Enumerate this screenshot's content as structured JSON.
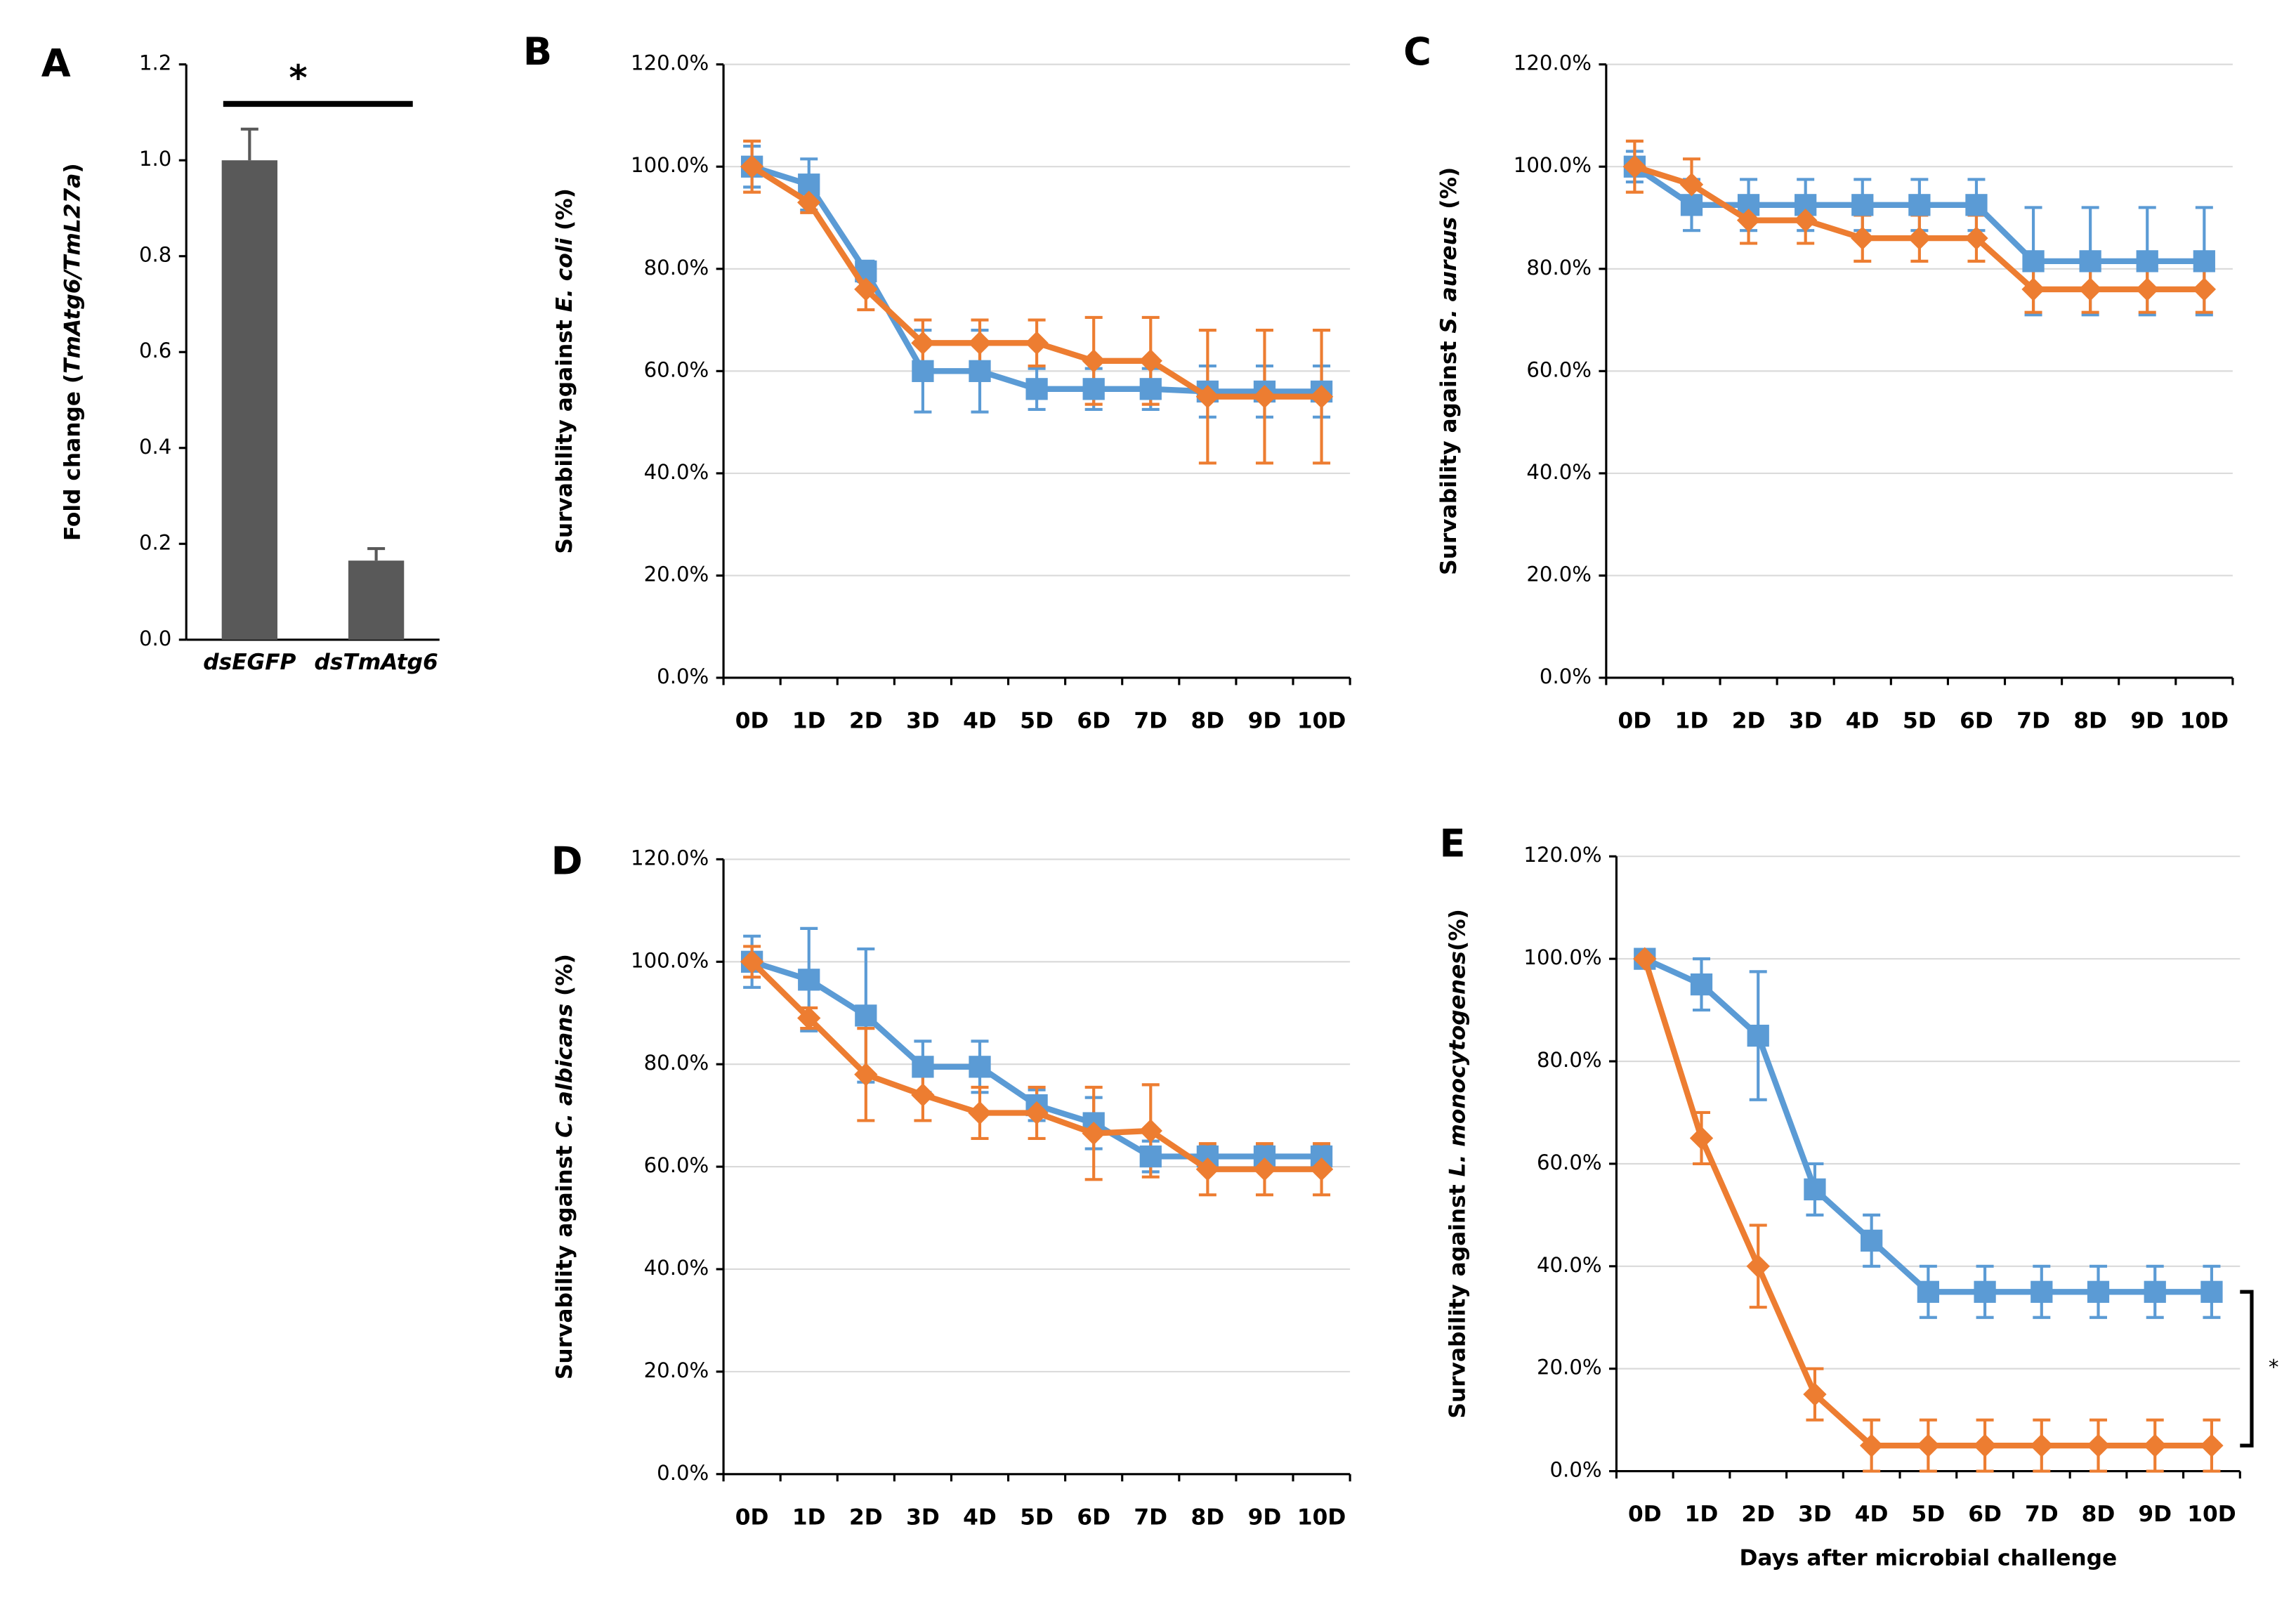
{
  "chart_data": [
    {
      "type": "bar",
      "label": "A",
      "ylabel": [
        {
          "text": "Fold change ("
        },
        {
          "text": "TmAtg6/TmL27a",
          "italic": true
        },
        {
          "text": ")"
        }
      ],
      "categories": [
        "dsEGFP",
        "dsTmAtg6"
      ],
      "values": [
        1.0,
        0.165
      ],
      "errors": [
        0.065,
        0.025
      ],
      "color": "#595959",
      "ylim": [
        0,
        1.2
      ],
      "yticks": [
        {
          "value": 0,
          "label": "0.0"
        },
        0.2,
        0.4,
        0.6,
        0.8,
        {
          "value": 1,
          "label": "1.0"
        },
        1.2
      ],
      "grid": false,
      "annotation": "*"
    },
    {
      "type": "line",
      "label": "B",
      "ylabel": [
        {
          "text": "Survability against "
        },
        {
          "text": "E. coli",
          "italic": true
        },
        {
          "text": " (%)"
        }
      ],
      "categories": [
        "0D",
        "1D",
        "2D",
        "3D",
        "4D",
        "5D",
        "6D",
        "7D",
        "8D",
        "9D",
        "10D"
      ],
      "ylim": [
        0,
        120
      ],
      "yticks": [
        {
          "value": 0,
          "label": "0.0%"
        },
        {
          "value": 20,
          "label": "20.0%"
        },
        {
          "value": 40,
          "label": "40.0%"
        },
        {
          "value": 60,
          "label": "60.0%"
        },
        {
          "value": 80,
          "label": "80.0%"
        },
        {
          "value": 100,
          "label": "100.0%"
        },
        {
          "value": 120,
          "label": "120.0%"
        }
      ],
      "grid": true,
      "series": [
        {
          "color": "#5b9bd5",
          "marker": "square",
          "values": [
            100,
            96.5,
            79.5,
            60,
            60,
            56.5,
            56.5,
            56.5,
            56,
            56,
            56
          ],
          "errors": [
            4,
            5,
            2,
            8,
            8,
            4,
            4,
            4,
            5,
            5,
            5
          ]
        },
        {
          "color": "#ed7d31",
          "marker": "diamond",
          "values": [
            100,
            93,
            76,
            65.5,
            65.5,
            65.5,
            62,
            62,
            55,
            55,
            55
          ],
          "errors": [
            5,
            2,
            4,
            4.5,
            4.5,
            4.5,
            8.5,
            8.5,
            13,
            13,
            13
          ]
        }
      ]
    },
    {
      "type": "line",
      "label": "C",
      "ylabel": [
        {
          "text": "Survability against "
        },
        {
          "text": "S. aureus",
          "italic": true
        },
        {
          "text": " (%)"
        }
      ],
      "categories": [
        "0D",
        "1D",
        "2D",
        "3D",
        "4D",
        "5D",
        "6D",
        "7D",
        "8D",
        "9D",
        "10D"
      ],
      "ylim": [
        0,
        120
      ],
      "yticks": [
        {
          "value": 0,
          "label": "0.0%"
        },
        {
          "value": 20,
          "label": "20.0%"
        },
        {
          "value": 40,
          "label": "40.0%"
        },
        {
          "value": 60,
          "label": "60.0%"
        },
        {
          "value": 80,
          "label": "80.0%"
        },
        {
          "value": 100,
          "label": "100.0%"
        },
        {
          "value": 120,
          "label": "120.0%"
        }
      ],
      "grid": true,
      "series": [
        {
          "color": "#5b9bd5",
          "marker": "square",
          "values": [
            100,
            92.5,
            92.5,
            92.5,
            92.5,
            92.5,
            92.5,
            81.5,
            81.5,
            81.5,
            81.5
          ],
          "errors": [
            3,
            5,
            5,
            5,
            5,
            5,
            5,
            10.5,
            10.5,
            10.5,
            10.5
          ]
        },
        {
          "color": "#ed7d31",
          "marker": "diamond",
          "values": [
            100,
            96.5,
            89.5,
            89.5,
            86,
            86,
            86,
            76,
            76,
            76,
            76
          ],
          "errors": [
            5,
            5,
            4.5,
            4.5,
            4.5,
            4.5,
            4.5,
            4.5,
            4.5,
            4.5,
            4.5
          ]
        }
      ]
    },
    {
      "type": "line",
      "label": "D",
      "ylabel": [
        {
          "text": "Survability against "
        },
        {
          "text": "C. albicans",
          "italic": true
        },
        {
          "text": " (%)"
        }
      ],
      "categories": [
        "0D",
        "1D",
        "2D",
        "3D",
        "4D",
        "5D",
        "6D",
        "7D",
        "8D",
        "9D",
        "10D"
      ],
      "ylim": [
        0,
        120
      ],
      "yticks": [
        {
          "value": 0,
          "label": "0.0%"
        },
        {
          "value": 20,
          "label": "20.0%"
        },
        {
          "value": 40,
          "label": "40.0%"
        },
        {
          "value": 60,
          "label": "60.0%"
        },
        {
          "value": 80,
          "label": "80.0%"
        },
        {
          "value": 100,
          "label": "100.0%"
        },
        {
          "value": 120,
          "label": "120.0%"
        }
      ],
      "grid": true,
      "series": [
        {
          "color": "#5b9bd5",
          "marker": "square",
          "values": [
            100,
            96.5,
            89.5,
            79.5,
            79.5,
            72,
            68.5,
            62,
            62,
            62,
            62
          ],
          "errors": [
            5,
            10,
            13,
            5,
            5,
            3,
            5,
            3,
            2,
            2,
            2
          ]
        },
        {
          "color": "#ed7d31",
          "marker": "diamond",
          "values": [
            100,
            89,
            78,
            74,
            70.5,
            70.5,
            66.5,
            67,
            59.5,
            59.5,
            59.5
          ],
          "errors": [
            3,
            2,
            9,
            5,
            5,
            5,
            9,
            9,
            5,
            5,
            5
          ]
        }
      ]
    },
    {
      "type": "line",
      "label": "E",
      "ylabel": [
        {
          "text": "Survability against "
        },
        {
          "text": "L. monocytogenes",
          "italic": true
        },
        {
          "text": "(%)"
        }
      ],
      "xlabel": "Days after microbial challenge",
      "categories": [
        "0D",
        "1D",
        "2D",
        "3D",
        "4D",
        "5D",
        "6D",
        "7D",
        "8D",
        "9D",
        "10D"
      ],
      "ylim": [
        0,
        120
      ],
      "yticks": [
        {
          "value": 0,
          "label": "0.0%"
        },
        {
          "value": 20,
          "label": "20.0%"
        },
        {
          "value": 40,
          "label": "40.0%"
        },
        {
          "value": 60,
          "label": "60.0%"
        },
        {
          "value": 80,
          "label": "80.0%"
        },
        {
          "value": 100,
          "label": "100.0%"
        },
        {
          "value": 120,
          "label": "120.0%"
        }
      ],
      "grid": true,
      "annotation": "*",
      "series": [
        {
          "color": "#5b9bd5",
          "marker": "square",
          "values": [
            100,
            95,
            85,
            55,
            45,
            35,
            35,
            35,
            35,
            35,
            35
          ],
          "errors": [
            1,
            5,
            12.5,
            5,
            5,
            5,
            5,
            5,
            5,
            5,
            5
          ]
        },
        {
          "color": "#ed7d31",
          "marker": "diamond",
          "values": [
            100,
            65,
            40,
            15,
            5,
            5,
            5,
            5,
            5,
            5,
            5
          ],
          "errors": [
            1,
            5,
            8,
            5,
            5,
            5,
            5,
            5,
            5,
            5,
            5
          ]
        }
      ]
    }
  ]
}
